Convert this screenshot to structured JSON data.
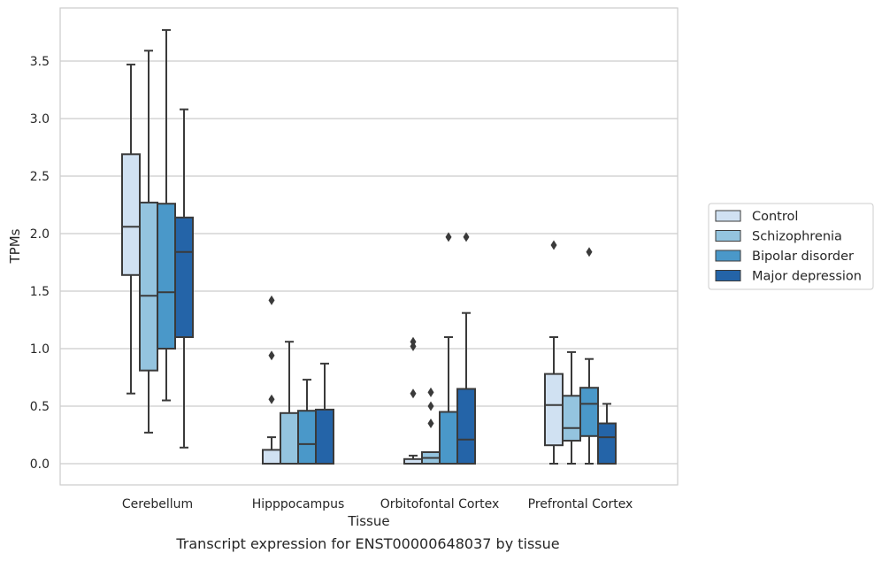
{
  "caption": "Transcript expression for ENST00000648037 by tissue",
  "chart_data": {
    "type": "box",
    "xlabel": "Tissue",
    "ylabel": "TPMs",
    "ylim": [
      -0.18,
      3.9
    ],
    "yticks": [
      "0.0",
      "0.5",
      "1.0",
      "1.5",
      "2.0",
      "2.5",
      "3.0",
      "3.5"
    ],
    "grid": "horizontal",
    "legend_placement": "right",
    "categories": [
      "Cerebellum",
      "Hipppocampus",
      "Orbitofontal Cortex",
      "Prefrontal Cortex"
    ],
    "series": [
      {
        "name": "Control",
        "color": "#d0e1f2",
        "boxes": [
          {
            "min": 0.61,
            "q1": 1.64,
            "median": 2.06,
            "q3": 2.69,
            "max": 3.47,
            "outliers": []
          },
          {
            "min": 0.0,
            "q1": 0.0,
            "median": 0.0,
            "q3": 0.12,
            "max": 0.23,
            "outliers": [
              0.56,
              0.94,
              1.42
            ]
          },
          {
            "min": 0.0,
            "q1": 0.0,
            "median": 0.0,
            "q3": 0.04,
            "max": 0.07,
            "outliers": [
              0.61,
              1.02,
              1.06
            ]
          },
          {
            "min": 0.0,
            "q1": 0.16,
            "median": 0.51,
            "q3": 0.78,
            "max": 1.1,
            "outliers": [
              1.9
            ]
          }
        ]
      },
      {
        "name": "Schizophrenia",
        "color": "#94c4df",
        "boxes": [
          {
            "min": 0.27,
            "q1": 0.81,
            "median": 1.46,
            "q3": 2.27,
            "max": 3.59,
            "outliers": []
          },
          {
            "min": 0.0,
            "q1": 0.0,
            "median": 0.0,
            "q3": 0.44,
            "max": 1.06,
            "outliers": []
          },
          {
            "min": 0.0,
            "q1": 0.0,
            "median": 0.05,
            "q3": 0.1,
            "max": 0.1,
            "outliers": [
              0.35,
              0.5,
              0.62
            ]
          },
          {
            "min": 0.0,
            "q1": 0.2,
            "median": 0.31,
            "q3": 0.59,
            "max": 0.97,
            "outliers": []
          }
        ]
      },
      {
        "name": "Bipolar disorder",
        "color": "#4a98c9",
        "boxes": [
          {
            "min": 0.55,
            "q1": 1.0,
            "median": 1.49,
            "q3": 2.26,
            "max": 3.77,
            "outliers": []
          },
          {
            "min": 0.0,
            "q1": 0.0,
            "median": 0.17,
            "q3": 0.46,
            "max": 0.73,
            "outliers": []
          },
          {
            "min": 0.0,
            "q1": 0.0,
            "median": 0.0,
            "q3": 0.45,
            "max": 1.1,
            "outliers": [
              1.97
            ]
          },
          {
            "min": 0.0,
            "q1": 0.24,
            "median": 0.52,
            "q3": 0.66,
            "max": 0.91,
            "outliers": [
              1.84
            ]
          }
        ]
      },
      {
        "name": "Major depression",
        "color": "#2464a8",
        "boxes": [
          {
            "min": 0.14,
            "q1": 1.1,
            "median": 1.84,
            "q3": 2.14,
            "max": 3.08,
            "outliers": []
          },
          {
            "min": 0.0,
            "q1": 0.0,
            "median": 0.0,
            "q3": 0.47,
            "max": 0.87,
            "outliers": []
          },
          {
            "min": 0.0,
            "q1": 0.0,
            "median": 0.21,
            "q3": 0.65,
            "max": 1.31,
            "outliers": [
              1.97
            ]
          },
          {
            "min": 0.0,
            "q1": 0.0,
            "median": 0.23,
            "q3": 0.35,
            "max": 0.52,
            "outliers": []
          }
        ]
      }
    ]
  }
}
